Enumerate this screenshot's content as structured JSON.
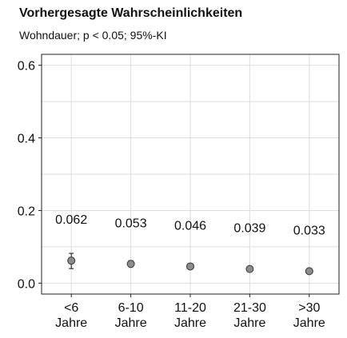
{
  "chart_data": {
    "type": "scatter",
    "title": "Vorhergesagte Wahrscheinlichkeiten",
    "subtitle": "Wohndauer; p < 0.05; 95%-KI",
    "categories": [
      [
        "<6",
        "Jahre"
      ],
      [
        "6-10",
        "Jahre"
      ],
      [
        "11-20",
        "Jahre"
      ],
      [
        "21-30",
        "Jahre"
      ],
      [
        ">30",
        "Jahre"
      ]
    ],
    "values": [
      0.062,
      0.053,
      0.046,
      0.039,
      0.033
    ],
    "value_labels": [
      "0.062",
      "0.053",
      "0.046",
      "0.039",
      "0.033"
    ],
    "ci_low": [
      0.04,
      0.045,
      0.041,
      0.035,
      0.029
    ],
    "ci_high": [
      0.082,
      0.062,
      0.051,
      0.043,
      0.037
    ],
    "ylim": [
      -0.03,
      0.63
    ],
    "yticks": [
      0.0,
      0.2,
      0.4,
      0.6
    ],
    "ytick_labels": [
      "0.0",
      "0.2",
      "0.4",
      "0.6"
    ],
    "grid": true,
    "colors": {
      "point_fill": "#8c8c8c",
      "point_stroke": "#333333",
      "grid": "#dddddd",
      "axis": "#222222"
    }
  }
}
